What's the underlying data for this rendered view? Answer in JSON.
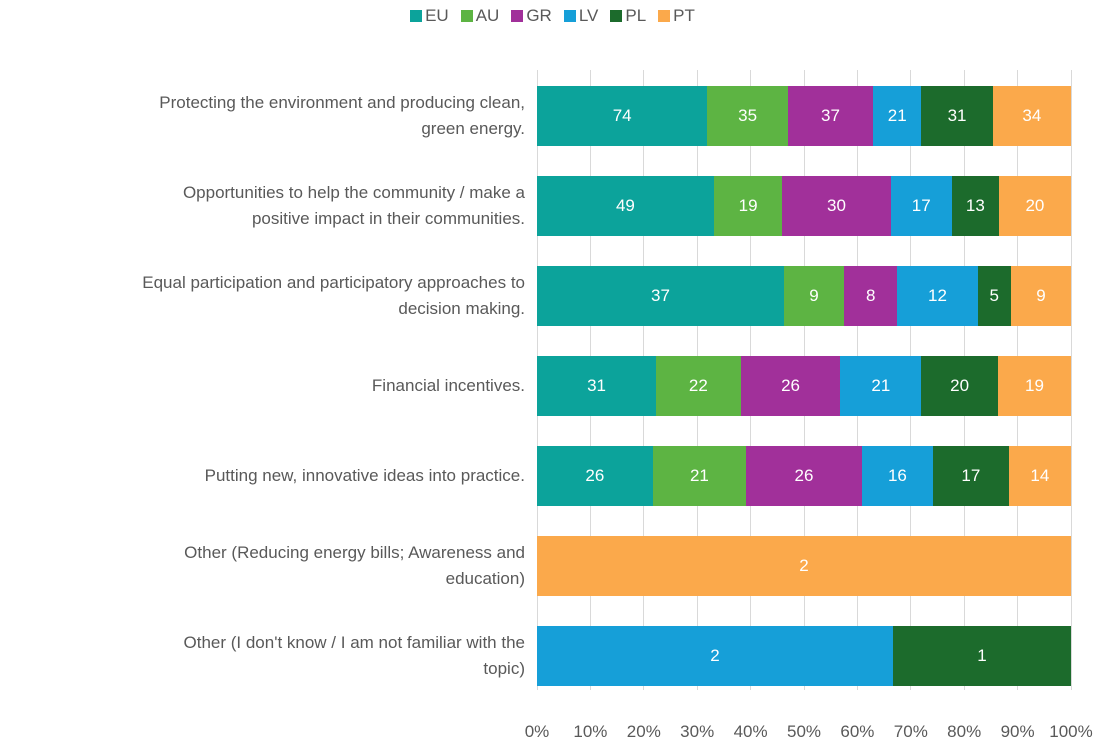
{
  "chart_data": {
    "type": "bar",
    "orientation": "horizontal",
    "stacking": "percent",
    "categories": [
      "Protecting the environment and producing clean,\ngreen energy.",
      "Opportunities to help the community / make a\npositive impact in their communities.",
      "Equal participation and participatory approaches to\ndecision making.",
      "Financial incentives.",
      "Putting new, innovative ideas into practice.",
      "Other (Reducing energy bills; Awareness and\neducation)",
      "Other (I don't know / I am not familiar with the\ntopic)"
    ],
    "series": [
      {
        "name": "EU",
        "color": "#0ca39b",
        "values": [
          74,
          49,
          37,
          31,
          26,
          null,
          null
        ]
      },
      {
        "name": "AU",
        "color": "#5db443",
        "values": [
          35,
          19,
          9,
          22,
          21,
          null,
          null
        ]
      },
      {
        "name": "GR",
        "color": "#a1309a",
        "values": [
          37,
          30,
          8,
          26,
          26,
          null,
          null
        ]
      },
      {
        "name": "LV",
        "color": "#169fd8",
        "values": [
          21,
          17,
          12,
          21,
          16,
          null,
          2
        ]
      },
      {
        "name": "PL",
        "color": "#1c6b2c",
        "values": [
          31,
          13,
          5,
          20,
          17,
          null,
          1
        ]
      },
      {
        "name": "PT",
        "color": "#fba94b",
        "values": [
          34,
          20,
          9,
          19,
          14,
          2,
          null
        ]
      }
    ],
    "xlim": [
      0,
      100
    ],
    "xticks": [
      {
        "value": 0,
        "label": "0%"
      },
      {
        "value": 10,
        "label": "10%"
      },
      {
        "value": 20,
        "label": "20%"
      },
      {
        "value": 30,
        "label": "30%"
      },
      {
        "value": 40,
        "label": "40%"
      },
      {
        "value": 50,
        "label": "50%"
      },
      {
        "value": 60,
        "label": "60%"
      },
      {
        "value": 70,
        "label": "70%"
      },
      {
        "value": 80,
        "label": "80%"
      },
      {
        "value": 90,
        "label": "90%"
      },
      {
        "value": 100,
        "label": "100%"
      }
    ],
    "grid": true,
    "legend": "top"
  }
}
